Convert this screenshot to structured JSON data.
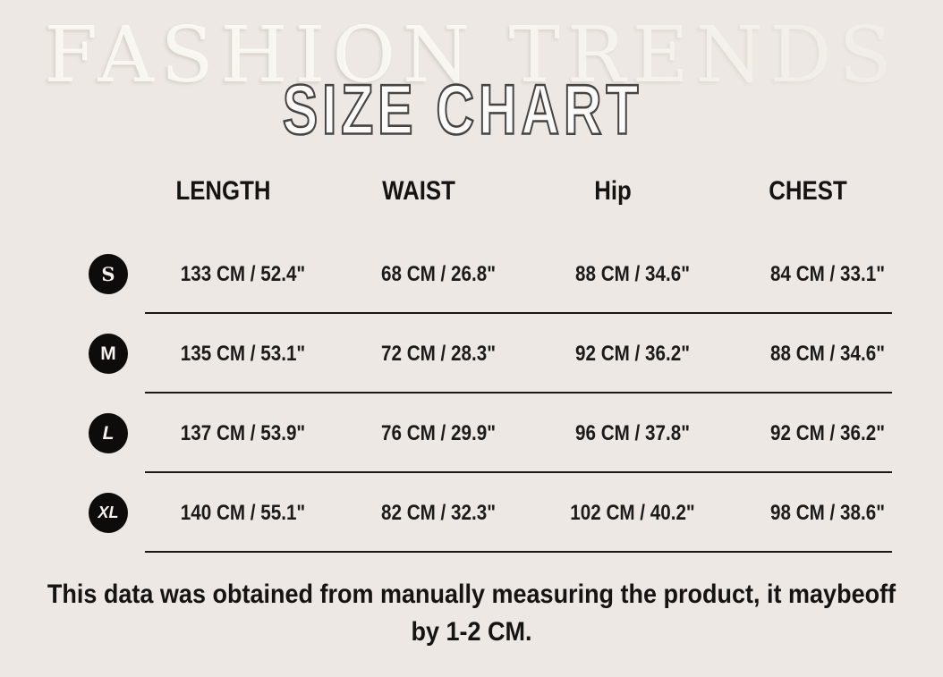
{
  "background": {
    "watermark": "FASHION TRENDS"
  },
  "title": "SIZE CHART",
  "table": {
    "columns": [
      "LENGTH",
      "WAIST",
      "Hip",
      "CHEST"
    ],
    "rows": [
      {
        "size": "S",
        "cells": [
          "133 CM / 52.4\"",
          "68 CM / 26.8\"",
          "88 CM / 34.6\"",
          "84 CM / 33.1\""
        ]
      },
      {
        "size": "M",
        "cells": [
          "135 CM / 53.1\"",
          "72 CM / 28.3\"",
          "92 CM / 36.2\"",
          "88 CM / 34.6\""
        ]
      },
      {
        "size": "L",
        "cells": [
          "137 CM / 53.9\"",
          "76 CM / 29.9\"",
          "96 CM / 37.8\"",
          "92 CM / 36.2\""
        ]
      },
      {
        "size": "XL",
        "cells": [
          "140 CM / 55.1\"",
          "82 CM / 32.3\"",
          "102 CM / 40.2\"",
          "98 CM / 38.6\""
        ]
      }
    ]
  },
  "footer": {
    "line1": "This data was obtained from manually measuring the product, it maybeoff",
    "line2": "by 1-2 CM."
  },
  "colors": {
    "background": "#EDE8E3",
    "text": "#1B1A19",
    "badge_fill": "#0E0C0A",
    "badge_text": "#F5F2EE",
    "divider_line": "#1B1713",
    "title_fill": "#FBFAF8",
    "title_outline": "#454443",
    "watermark_text": "#FDFAF6"
  }
}
